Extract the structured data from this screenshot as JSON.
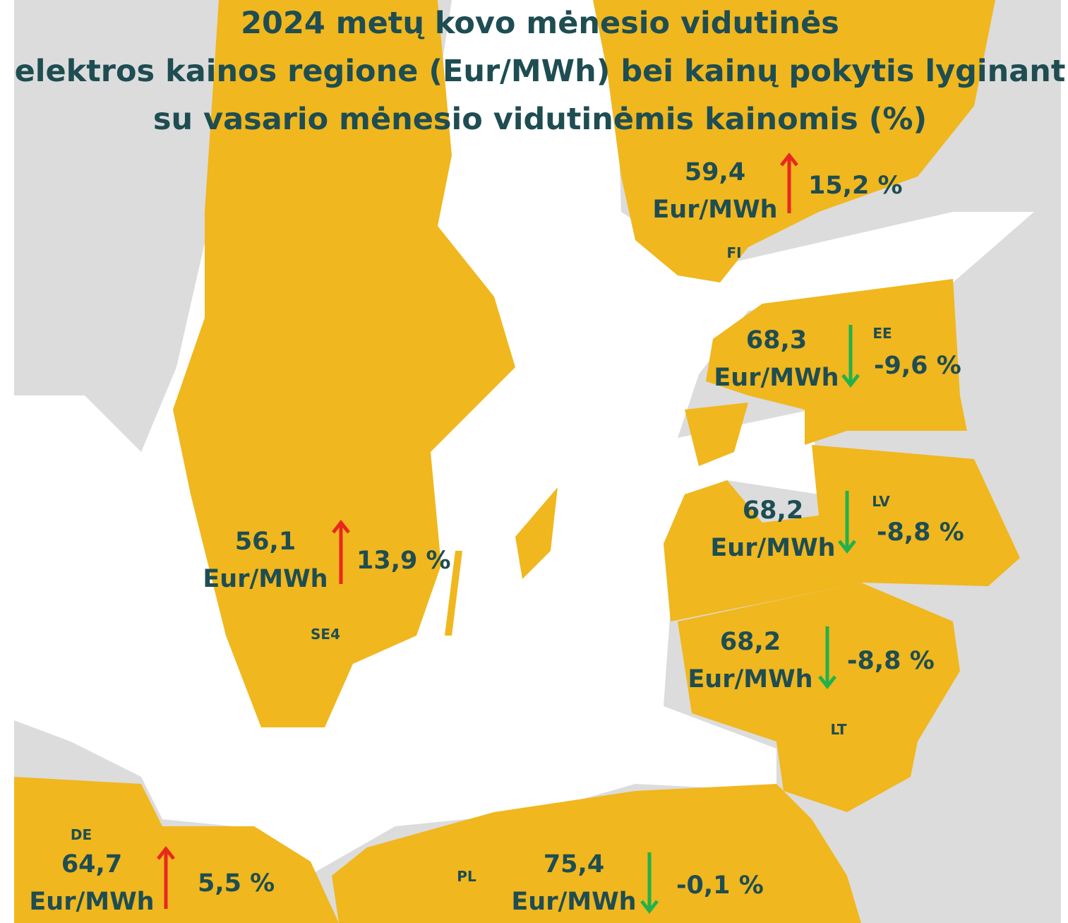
{
  "title": [
    "2024 metų kovo mėnesio vidutinės",
    "elektros kainos regione (Eur/MWh) bei kainų pokytis lyginant",
    "su vasario mėnesio vidutinėmis kainomis (%)"
  ],
  "regions": [
    {
      "code": "FI",
      "price": "59,4",
      "unit": "Eur/MWh",
      "change": "15,2 %"
    },
    {
      "code": "EE",
      "price": "68,3",
      "unit": "Eur/MWh",
      "change": "-9,6 %"
    },
    {
      "code": "LV",
      "price": "68,2",
      "unit": "Eur/MWh",
      "change": "-8,8 %"
    },
    {
      "code": "LT",
      "price": "68,2",
      "unit": "Eur/MWh",
      "change": "-8,8 %"
    },
    {
      "code": "SE4",
      "price": "56,1",
      "unit": "Eur/MWh",
      "change": "13,9 %"
    },
    {
      "code": "DE",
      "price": "64,7",
      "unit": "Eur/MWh",
      "change": "5,5 %"
    },
    {
      "code": "PL",
      "price": "75,4",
      "unit": "Eur/MWh",
      "change": "-0,1 %"
    }
  ]
}
